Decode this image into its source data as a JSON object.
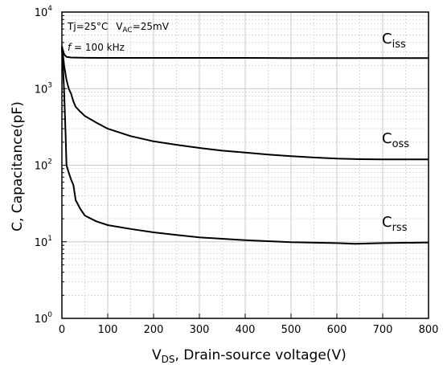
{
  "chart_data": {
    "type": "line",
    "ylabel": "C, Capacitance(pF)",
    "xlabel": {
      "main": "V",
      "sub": "DS",
      "rest": ", Drain-source voltage(V)"
    },
    "x_scale": "linear",
    "y_scale": "log",
    "xlim": [
      0,
      800
    ],
    "ylim": [
      1,
      10000
    ],
    "x_ticks": [
      "0",
      "100",
      "200",
      "300",
      "400",
      "500",
      "600",
      "700",
      "800"
    ],
    "y_ticks": [
      {
        "base": "10",
        "exp": "0"
      },
      {
        "base": "10",
        "exp": "1"
      },
      {
        "base": "10",
        "exp": "2"
      },
      {
        "base": "10",
        "exp": "3"
      },
      {
        "base": "10",
        "exp": "4"
      }
    ],
    "grid": true,
    "annotations": {
      "line1_a": "Tj=25°C",
      "line1_v": "V",
      "line1_vsub": "AC",
      "line1_vrest": "=25mV",
      "line2_f": "f",
      "line2_rest": " = 100 kHz"
    },
    "series": [
      {
        "name": "C",
        "name_sub": "iss",
        "x": [
          0,
          2,
          5,
          10,
          20,
          50,
          100,
          200,
          300,
          400,
          500,
          600,
          700,
          800
        ],
        "y": [
          3600,
          3200,
          2800,
          2600,
          2550,
          2530,
          2520,
          2520,
          2520,
          2520,
          2510,
          2510,
          2510,
          2500
        ]
      },
      {
        "name": "C",
        "name_sub": "oss",
        "x": [
          0,
          2,
          5,
          10,
          15,
          20,
          25,
          30,
          40,
          50,
          75,
          100,
          150,
          200,
          250,
          300,
          350,
          400,
          450,
          500,
          550,
          600,
          650,
          700,
          750,
          800
        ],
        "y": [
          3500,
          2900,
          2000,
          1300,
          1000,
          860,
          680,
          580,
          500,
          440,
          360,
          300,
          240,
          205,
          185,
          168,
          155,
          146,
          138,
          131,
          126,
          122,
          120,
          119,
          119,
          119
        ]
      },
      {
        "name": "C",
        "name_sub": "rss",
        "x": [
          0,
          2,
          5,
          8,
          10,
          15,
          20,
          25,
          30,
          40,
          50,
          75,
          100,
          150,
          200,
          250,
          300,
          400,
          500,
          600,
          640,
          700,
          800
        ],
        "y": [
          3400,
          2200,
          900,
          250,
          100,
          80,
          65,
          55,
          35,
          27,
          22,
          18.5,
          16.5,
          14.7,
          13.3,
          12.3,
          11.4,
          10.5,
          9.9,
          9.6,
          9.4,
          9.6,
          9.8
        ]
      }
    ]
  }
}
